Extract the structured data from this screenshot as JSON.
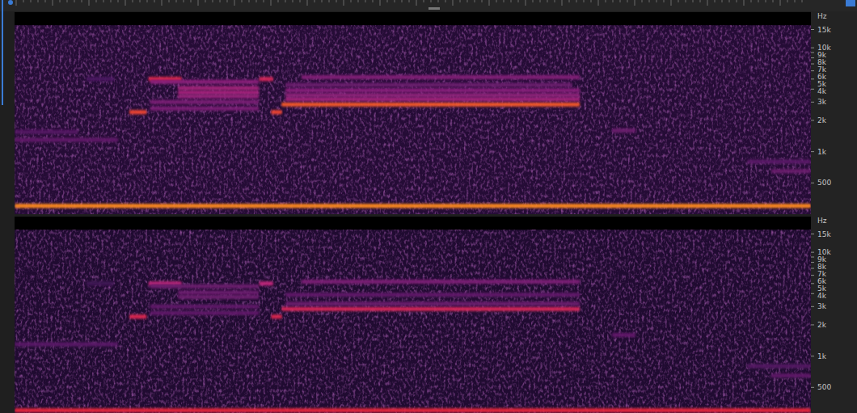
{
  "chart_data": [
    {
      "type": "spectrogram",
      "y_label": "Hz",
      "log": "y",
      "tick_labels": "y",
      "xlim": [
        0,
        100
      ],
      "ylim": [
        250,
        22050
      ],
      "zlim": [
        0,
        100
      ],
      "yticks": [
        {
          "value": 15000,
          "label": "15k"
        },
        {
          "value": 10000,
          "label": "10k"
        },
        {
          "value": 9000,
          "label": "9k"
        },
        {
          "value": 8000,
          "label": "8k"
        },
        {
          "value": 7000,
          "label": "7k"
        },
        {
          "value": 6000,
          "label": "6k"
        },
        {
          "value": 5000,
          "label": "5k"
        },
        {
          "value": 4000,
          "label": "4k"
        },
        {
          "value": 3000,
          "label": "3k"
        },
        {
          "value": 2000,
          "label": "2k"
        },
        {
          "value": 1000,
          "label": "1k"
        },
        500
      ],
      "noise_floor": 18,
      "lowpass": 16500,
      "bands": [
        {
          "freq": 300,
          "start": 0,
          "end": 100,
          "level": 95
        },
        {
          "freq": 1300,
          "start": 0,
          "end": 13,
          "level": 42
        },
        {
          "freq": 1550,
          "start": 0,
          "end": 8,
          "level": 38
        },
        {
          "freq": 5000,
          "start": 9,
          "end": 12.5,
          "level": 35
        },
        {
          "freq": 2400,
          "start": 14.4,
          "end": 16.6,
          "level": 88
        },
        {
          "freq": 5000,
          "start": 16.8,
          "end": 21,
          "level": 82
        },
        {
          "freq": 4700,
          "start": 17,
          "end": 30.7,
          "level": 55
        },
        {
          "freq": 4100,
          "start": 20.5,
          "end": 30.7,
          "level": 62
        },
        {
          "freq": 3700,
          "start": 20.5,
          "end": 30.7,
          "level": 62
        },
        {
          "freq": 3400,
          "start": 20.5,
          "end": 30.7,
          "level": 58
        },
        {
          "freq": 3000,
          "start": 17,
          "end": 30.7,
          "level": 50
        },
        {
          "freq": 2600,
          "start": 17,
          "end": 30.7,
          "level": 50
        },
        {
          "freq": 5000,
          "start": 30.7,
          "end": 32.5,
          "level": 78
        },
        {
          "freq": 2400,
          "start": 32.2,
          "end": 33.6,
          "level": 88
        },
        {
          "freq": 2850,
          "start": 33.5,
          "end": 71,
          "level": 90
        },
        {
          "freq": 3200,
          "start": 34,
          "end": 71,
          "level": 62
        },
        {
          "freq": 3500,
          "start": 34,
          "end": 71,
          "level": 56
        },
        {
          "freq": 3900,
          "start": 34,
          "end": 71,
          "level": 54
        },
        {
          "freq": 4400,
          "start": 34,
          "end": 70,
          "level": 45
        },
        {
          "freq": 5200,
          "start": 36,
          "end": 71,
          "level": 52
        },
        {
          "freq": 1600,
          "start": 75,
          "end": 78,
          "level": 45
        },
        {
          "freq": 800,
          "start": 92,
          "end": 100,
          "level": 40
        },
        {
          "freq": 650,
          "start": 95,
          "end": 100,
          "level": 45
        }
      ]
    },
    {
      "type": "spectrogram",
      "y_label": "Hz",
      "log": "y",
      "tick_labels": "y",
      "xlim": [
        0,
        100
      ],
      "ylim": [
        250,
        22050
      ],
      "zlim": [
        0,
        100
      ],
      "yticks": [
        {
          "value": 15000,
          "label": "15k"
        },
        {
          "value": 10000,
          "label": "10k"
        },
        {
          "value": 9000,
          "label": "9k"
        },
        {
          "value": 8000,
          "label": "8k"
        },
        {
          "value": 7000,
          "label": "7k"
        },
        {
          "value": 6000,
          "label": "6k"
        },
        {
          "value": 5000,
          "label": "5k"
        },
        {
          "value": 4000,
          "label": "4k"
        },
        {
          "value": 3000,
          "label": "3k"
        },
        {
          "value": 2000,
          "label": "2k"
        },
        {
          "value": 1000,
          "label": "1k"
        },
        500
      ],
      "noise_floor": 16,
      "lowpass": 16500,
      "bands": [
        {
          "freq": 300,
          "start": 0,
          "end": 100,
          "level": 85
        },
        {
          "freq": 1300,
          "start": 0,
          "end": 13,
          "level": 40
        },
        {
          "freq": 5000,
          "start": 9,
          "end": 12.5,
          "level": 30
        },
        {
          "freq": 2400,
          "start": 14.4,
          "end": 16.6,
          "level": 80
        },
        {
          "freq": 5000,
          "start": 16.8,
          "end": 21,
          "level": 70
        },
        {
          "freq": 4700,
          "start": 17,
          "end": 30.7,
          "level": 45
        },
        {
          "freq": 4100,
          "start": 20.5,
          "end": 30.7,
          "level": 45
        },
        {
          "freq": 3700,
          "start": 20.5,
          "end": 30.7,
          "level": 45
        },
        {
          "freq": 3000,
          "start": 17,
          "end": 30.7,
          "level": 42
        },
        {
          "freq": 2600,
          "start": 17,
          "end": 30.7,
          "level": 42
        },
        {
          "freq": 5000,
          "start": 30.7,
          "end": 32.5,
          "level": 70
        },
        {
          "freq": 2400,
          "start": 32.2,
          "end": 33.6,
          "level": 80
        },
        {
          "freq": 2850,
          "start": 33.5,
          "end": 71,
          "level": 78
        },
        {
          "freq": 3200,
          "start": 34,
          "end": 71,
          "level": 45
        },
        {
          "freq": 3900,
          "start": 34,
          "end": 71,
          "level": 42
        },
        {
          "freq": 5200,
          "start": 36,
          "end": 71,
          "level": 50
        },
        {
          "freq": 1600,
          "start": 75,
          "end": 78,
          "level": 42
        },
        {
          "freq": 800,
          "start": 92,
          "end": 100,
          "level": 38
        },
        {
          "freq": 650,
          "start": 95,
          "end": 100,
          "level": 42
        }
      ]
    }
  ]
}
